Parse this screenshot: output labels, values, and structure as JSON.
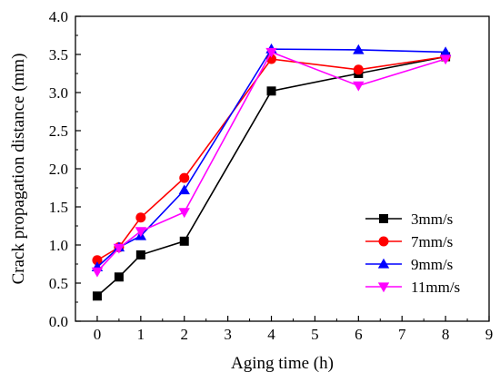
{
  "chart_data": {
    "type": "line",
    "xlabel": "Aging time (h)",
    "ylabel": "Crack propagation distance (mm)",
    "xlim": [
      -0.5,
      9
    ],
    "ylim": [
      0.0,
      4.0
    ],
    "xticks": [
      0,
      1,
      2,
      3,
      4,
      5,
      6,
      7,
      8,
      9
    ],
    "yticks": [
      0.0,
      0.5,
      1.0,
      1.5,
      2.0,
      2.5,
      3.0,
      3.5,
      4.0
    ],
    "xtick_labels": [
      "0",
      "1",
      "2",
      "3",
      "4",
      "5",
      "6",
      "7",
      "8",
      "9"
    ],
    "ytick_labels": [
      "0.0",
      "0.5",
      "1.0",
      "1.5",
      "2.0",
      "2.5",
      "3.0",
      "3.5",
      "4.0"
    ],
    "grid": false,
    "legend_position": "bottom-right",
    "series": [
      {
        "name": "3mm/s",
        "color": "#000000",
        "marker": "square",
        "x": [
          0,
          0.5,
          1,
          2,
          4,
          6,
          8
        ],
        "y": [
          0.33,
          0.58,
          0.87,
          1.05,
          3.02,
          3.25,
          3.47
        ]
      },
      {
        "name": "7mm/s",
        "color": "#ff0000",
        "marker": "circle",
        "x": [
          0,
          0.5,
          1,
          2,
          4,
          6,
          8
        ],
        "y": [
          0.8,
          0.97,
          1.36,
          1.88,
          3.44,
          3.3,
          3.47
        ]
      },
      {
        "name": "9mm/s",
        "color": "#0000ff",
        "marker": "triangle-up",
        "x": [
          0,
          0.5,
          1,
          2,
          4,
          6,
          8
        ],
        "y": [
          0.71,
          0.97,
          1.12,
          1.72,
          3.57,
          3.56,
          3.53
        ]
      },
      {
        "name": "11mm/s",
        "color": "#ff00ff",
        "marker": "triangle-down",
        "x": [
          0,
          0.5,
          1,
          2,
          4,
          6,
          8
        ],
        "y": [
          0.65,
          0.96,
          1.18,
          1.43,
          3.53,
          3.09,
          3.44
        ]
      }
    ]
  }
}
